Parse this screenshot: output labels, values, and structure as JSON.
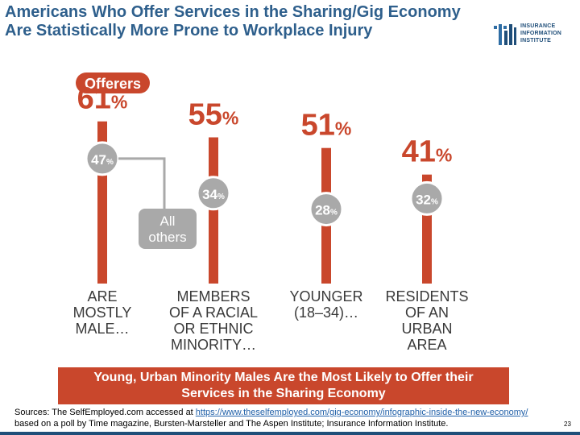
{
  "title": "Americans Who Offer Services in the Sharing/Gig Economy Are Statistically More Prone to Workplace Injury",
  "logo": {
    "line1": "INSURANCE",
    "line2": "INFORMATION",
    "line3": "INSTITUTE"
  },
  "colors": {
    "offer": "#c9472c",
    "others": "#a9a9a9",
    "title": "#2e5f8c",
    "dark": "#3a3a3a"
  },
  "chart_data": {
    "type": "bar",
    "legend": {
      "offerers": "Offerers",
      "others": "All others"
    },
    "categories": [
      [
        "ARE",
        "MOSTLY",
        "MALE…"
      ],
      [
        "MEMBERS",
        "OF A RACIAL",
        "OR ETHNIC",
        "MINORITY…"
      ],
      [
        "YOUNGER",
        "(18–34)…"
      ],
      [
        "RESIDENTS",
        "OF AN",
        "URBAN",
        "AREA"
      ]
    ],
    "series": [
      {
        "name": "Offerers",
        "values": [
          61,
          55,
          51,
          41
        ],
        "labels": [
          "61%",
          "55%",
          "51%",
          "41%"
        ]
      },
      {
        "name": "All others",
        "values": [
          47,
          34,
          28,
          32
        ],
        "labels": [
          "47%",
          "34%",
          "28%",
          "32%"
        ]
      }
    ]
  },
  "banner": "Young, Urban Minority Males Are the Most Likely to Offer their Services in the Sharing Economy",
  "source": {
    "prefix": "Sources: The SelfEmployed.com accessed at ",
    "link": "https://www.theselfemployed.com/gig-economy/infographic-inside-the-new-economy/",
    "suffix": " based on a poll by Time magazine, Bursten-Marsteller and The Aspen Institute; Insurance Information Institute."
  },
  "page_number": "23"
}
